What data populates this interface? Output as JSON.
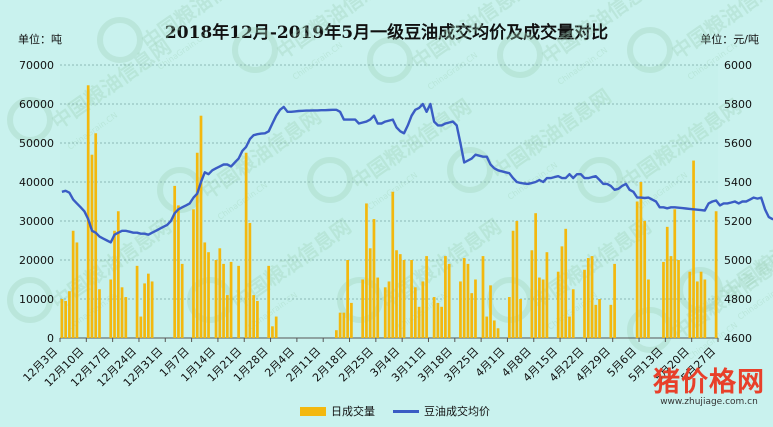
{
  "chart_data": {
    "type": "bar+line",
    "title": "2018年12月-2019年5月一级豆油成交均价及成交量对比",
    "ylabel_left": "单位：吨",
    "ylabel_right": "单位：元/吨",
    "ylim_left": [
      0,
      70000
    ],
    "ylim_right": [
      4600,
      6000
    ],
    "yticks_left": [
      "0",
      "10000",
      "20000",
      "30000",
      "40000",
      "50000",
      "60000",
      "70000"
    ],
    "yticks_right": [
      "4600",
      "4800",
      "5000",
      "5200",
      "5400",
      "5600",
      "5800",
      "6000"
    ],
    "x_tick_labels": [
      "12月3日",
      "12月10日",
      "12月17日",
      "12月24日",
      "12月31日",
      "1月7日",
      "1月14日",
      "1月21日",
      "1月28日",
      "2月4日",
      "2月11日",
      "2月18日",
      "2月25日",
      "3月4日",
      "3月11日",
      "3月18日",
      "3月25日",
      "4月1日",
      "4月8日",
      "4月15日",
      "4月22日",
      "4月29日",
      "5月6日",
      "5月13日",
      "5月20日",
      "5月27日"
    ],
    "grid": true,
    "legend_position": "bottom",
    "series": [
      {
        "name": "日成交量",
        "type": "bar",
        "axis": "left",
        "values": [
          10000,
          9500,
          12000,
          27500,
          24500,
          0,
          0,
          64800,
          47000,
          52500,
          12500,
          0,
          0,
          15000,
          27500,
          32500,
          13000,
          10500,
          0,
          0,
          18500,
          5500,
          14000,
          16500,
          14500,
          0,
          0,
          0,
          0,
          0,
          39000,
          34000,
          19000,
          0,
          0,
          33000,
          47500,
          57000,
          24500,
          22000,
          0,
          20000,
          23000,
          19000,
          11000,
          19500,
          0,
          18500,
          0,
          47500,
          29500,
          11000,
          9500,
          0,
          0,
          18500,
          3000,
          5500,
          0,
          0,
          0,
          0,
          0,
          0,
          0,
          0,
          0,
          0,
          0,
          0,
          0,
          0,
          0,
          2000,
          6500,
          6500,
          20000,
          9000,
          0,
          0,
          15000,
          34500,
          23000,
          30500,
          15500,
          0,
          13000,
          14500,
          37500,
          22500,
          21500,
          20000,
          0,
          20000,
          13000,
          8000,
          14500,
          21000,
          0,
          10500,
          9000,
          8000,
          21000,
          19000,
          0,
          0,
          14500,
          20500,
          19000,
          11500,
          15000,
          0,
          21000,
          5500,
          13500,
          4500,
          2500,
          0,
          0,
          10500,
          27500,
          30000,
          10000,
          0,
          0,
          22500,
          32000,
          15500,
          15000,
          22000,
          0,
          0,
          17000,
          23500,
          28000,
          5500,
          12500,
          0,
          0,
          17500,
          20500,
          21000,
          8500,
          10000,
          0,
          0,
          8500,
          19000,
          0,
          0,
          0,
          0,
          0,
          35000,
          40000,
          30000,
          15000,
          0,
          0,
          0,
          19500,
          28500,
          21000,
          33000,
          20000,
          0,
          0,
          17000,
          45500,
          14500,
          17000,
          15000,
          0,
          0,
          32500
        ]
      },
      {
        "name": "豆油成交均价",
        "type": "line",
        "axis": "right",
        "values": [
          5350,
          5355,
          5345,
          5310,
          5290,
          5270,
          5250,
          5210,
          5150,
          5140,
          5120,
          5110,
          5100,
          5090,
          5130,
          5140,
          5150,
          5150,
          5145,
          5140,
          5140,
          5135,
          5135,
          5130,
          5140,
          5150,
          5160,
          5170,
          5180,
          5200,
          5240,
          5260,
          5270,
          5280,
          5290,
          5320,
          5340,
          5400,
          5450,
          5440,
          5460,
          5470,
          5480,
          5490,
          5490,
          5480,
          5500,
          5520,
          5560,
          5580,
          5620,
          5640,
          5645,
          5648,
          5650,
          5660,
          5700,
          5740,
          5770,
          5785,
          5760,
          5760,
          5762,
          5764,
          5765,
          5766,
          5766,
          5767,
          5767,
          5768,
          5768,
          5769,
          5770,
          5770,
          5760,
          5720,
          5720,
          5720,
          5720,
          5700,
          5705,
          5710,
          5720,
          5740,
          5700,
          5700,
          5710,
          5715,
          5720,
          5680,
          5660,
          5650,
          5690,
          5740,
          5770,
          5780,
          5800,
          5760,
          5800,
          5710,
          5690,
          5690,
          5700,
          5705,
          5710,
          5690,
          5600,
          5500,
          5510,
          5520,
          5540,
          5535,
          5530,
          5530,
          5490,
          5470,
          5460,
          5455,
          5450,
          5445,
          5420,
          5400,
          5395,
          5392,
          5390,
          5395,
          5400,
          5410,
          5400,
          5420,
          5420,
          5425,
          5430,
          5420,
          5420,
          5440,
          5420,
          5440,
          5440,
          5420,
          5420,
          5425,
          5430,
          5410,
          5390,
          5390,
          5380,
          5360,
          5365,
          5380,
          5390,
          5360,
          5350,
          5320,
          5320,
          5318,
          5320,
          5310,
          5300,
          5270,
          5270,
          5265,
          5270,
          5270,
          5268,
          5266,
          5264,
          5262,
          5260,
          5258,
          5256,
          5254,
          5290,
          5300,
          5305,
          5280,
          5290,
          5290,
          5295,
          5300,
          5290,
          5300,
          5300,
          5310,
          5320,
          5315,
          5320,
          5260,
          5220,
          5210,
          5212,
          5215,
          5218,
          5220
        ]
      }
    ]
  },
  "legend": {
    "bar_label": "日成交量",
    "line_label": "豆油成交均价"
  },
  "watermark": {
    "brand_text": "中国粮油信息网",
    "brand_url": "ChinaGrain.CN",
    "site_logo": "猪价格网",
    "site_url": "www.zhujiage.com.cn"
  },
  "colors": {
    "background": "#c9f2ee",
    "plot_area": "#c6f1ec",
    "bar": "#f3b80e",
    "line": "#3a5cc4",
    "grid": "#7aa7a4"
  }
}
